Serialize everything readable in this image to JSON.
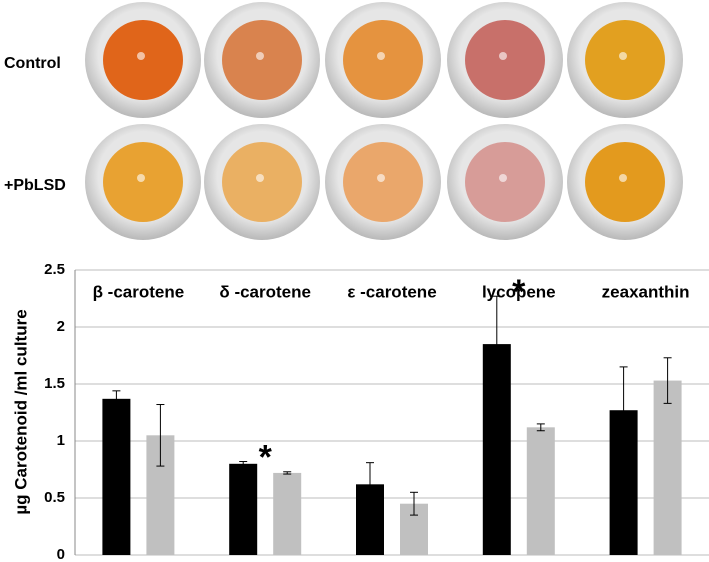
{
  "chart_data": {
    "type": "bar",
    "y_label": "µg Carotenoid /ml culture",
    "categories": [
      "β -carotene",
      "δ -carotene",
      "ε -carotene",
      "lycopene",
      "zeaxanthin"
    ],
    "series": [
      {
        "name": "Control",
        "color": "#000000",
        "values": [
          1.37,
          0.8,
          0.62,
          1.85,
          1.27
        ],
        "errors": [
          0.07,
          0.02,
          0.19,
          0.42,
          0.38
        ]
      },
      {
        "name": "+PbLSD",
        "color": "#c0c0c0",
        "values": [
          1.05,
          0.72,
          0.45,
          1.12,
          1.53
        ],
        "errors": [
          0.27,
          0.01,
          0.1,
          0.03,
          0.2
        ]
      }
    ],
    "significant": [
      false,
      true,
      false,
      true,
      false
    ],
    "significance_marker": "*",
    "ylim": [
      0,
      2.5
    ],
    "yticks": [
      0,
      0.5,
      1,
      1.5,
      2,
      2.5
    ],
    "grid": true
  }
}
